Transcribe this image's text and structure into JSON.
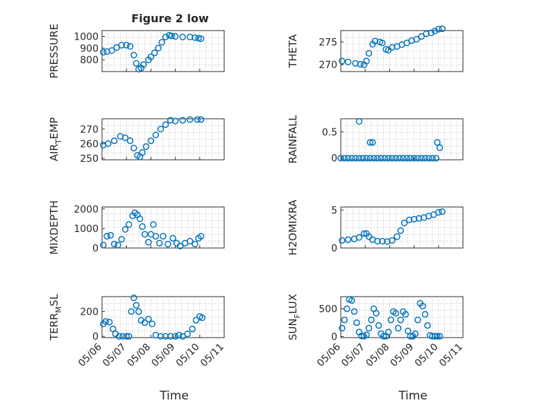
{
  "figure": {
    "title": "Figure 2 low",
    "xlabel": "Time"
  },
  "chart_data": [
    {
      "type": "scatter",
      "ylabel": "PRESSURE",
      "title": "Figure 2 low",
      "ylim": [
        700,
        1050
      ],
      "yticks": [
        800,
        900,
        1000
      ],
      "xlim": [
        0,
        5
      ],
      "series": [
        {
          "color": "#0072BD",
          "x": [
            0.05,
            0.2,
            0.4,
            0.6,
            0.8,
            1.0,
            1.15,
            1.3,
            1.4,
            1.5,
            1.6,
            1.7,
            1.9,
            2.0,
            2.15,
            2.3,
            2.45,
            2.6,
            2.75,
            2.85,
            3.0,
            3.3,
            3.6,
            3.8,
            3.95,
            4.05
          ],
          "y": [
            865,
            870,
            880,
            905,
            925,
            925,
            915,
            840,
            770,
            720,
            730,
            760,
            800,
            825,
            860,
            900,
            950,
            995,
            1010,
            1005,
            1000,
            995,
            995,
            990,
            985,
            980
          ]
        }
      ]
    },
    {
      "type": "scatter",
      "ylabel": "THETA",
      "ylim": [
        268.5,
        277.5
      ],
      "yticks": [
        270,
        275
      ],
      "xlim": [
        0,
        5
      ],
      "series": [
        {
          "color": "#0072BD",
          "x": [
            0.05,
            0.3,
            0.6,
            0.8,
            0.95,
            1.05,
            1.15,
            1.3,
            1.4,
            1.6,
            1.7,
            1.85,
            1.95,
            2.1,
            2.3,
            2.5,
            2.7,
            2.9,
            3.1,
            3.3,
            3.5,
            3.7,
            3.85,
            4.0,
            4.15
          ],
          "y": [
            270.8,
            270.6,
            270.3,
            270.1,
            270,
            270.8,
            272.5,
            274.5,
            275.2,
            275,
            274.8,
            273.4,
            273.2,
            273.8,
            274.0,
            274.4,
            274.8,
            275.3,
            275.6,
            276.2,
            276.8,
            277.0,
            277.4,
            277.8,
            277.9
          ]
        }
      ]
    },
    {
      "type": "scatter",
      "ylabel": "AIR_TEMP",
      "ylabel_main": "AIR",
      "ylabel_sub": "T",
      "ylabel_rest": "EMP",
      "ylim": [
        249,
        277
      ],
      "yticks": [
        250,
        260,
        270
      ],
      "xlim": [
        0,
        5
      ],
      "series": [
        {
          "color": "#0072BD",
          "x": [
            0.05,
            0.25,
            0.5,
            0.75,
            0.95,
            1.15,
            1.3,
            1.45,
            1.55,
            1.65,
            1.8,
            2.0,
            2.2,
            2.4,
            2.6,
            2.8,
            3.0,
            3.3,
            3.6,
            3.9,
            4.05
          ],
          "y": [
            259,
            260,
            262,
            265,
            264,
            262,
            257,
            252,
            251,
            254,
            258,
            262,
            266,
            270,
            273,
            276,
            275.5,
            276,
            276.5,
            276.5,
            276.5
          ]
        }
      ]
    },
    {
      "type": "scatter",
      "ylabel": "RAINFALL",
      "ylim": [
        -0.03,
        0.75
      ],
      "yticks": [
        0,
        0.5
      ],
      "xlim": [
        0,
        5
      ],
      "series": [
        {
          "color": "#0072BD",
          "x": [
            0.0,
            0.15,
            0.3,
            0.45,
            0.6,
            0.75,
            0.9,
            1.05,
            1.2,
            1.35,
            1.5,
            1.65,
            1.8,
            1.95,
            2.1,
            2.25,
            2.4,
            2.55,
            2.7,
            2.85,
            3.0,
            3.15,
            3.3,
            3.45,
            3.6,
            3.75,
            3.9,
            0.75,
            1.2,
            1.3,
            3.95,
            4.05
          ],
          "y": [
            0,
            0,
            0,
            0,
            0,
            0,
            0,
            0,
            0,
            0,
            0,
            0,
            0,
            0,
            0,
            0,
            0,
            0,
            0,
            0,
            0,
            0,
            0,
            0,
            0,
            0,
            0,
            0.7,
            0.3,
            0.3,
            0.3,
            0.2
          ]
        }
      ]
    },
    {
      "type": "scatter",
      "ylabel": "MIXDEPTH",
      "ylim": [
        0,
        2100
      ],
      "yticks": [
        0,
        1000,
        2000
      ],
      "xlim": [
        0,
        5
      ],
      "series": [
        {
          "color": "#0072BD",
          "x": [
            0.05,
            0.2,
            0.35,
            0.5,
            0.65,
            0.8,
            0.95,
            1.1,
            1.25,
            1.35,
            1.45,
            1.55,
            1.65,
            1.75,
            1.9,
            2.0,
            2.1,
            2.2,
            2.35,
            2.5,
            2.7,
            2.9,
            3.05,
            3.2,
            3.4,
            3.6,
            3.8,
            3.95,
            4.05
          ],
          "y": [
            150,
            600,
            650,
            200,
            150,
            450,
            950,
            1200,
            1650,
            1800,
            1700,
            1500,
            1100,
            700,
            300,
            700,
            1200,
            600,
            250,
            600,
            200,
            500,
            250,
            100,
            250,
            350,
            200,
            500,
            600
          ]
        }
      ]
    },
    {
      "type": "scatter",
      "ylabel": "H2OMIXRA",
      "ylim": [
        0,
        5.4
      ],
      "yticks": [
        0,
        5
      ],
      "xlim": [
        0,
        5
      ],
      "series": [
        {
          "color": "#0072BD",
          "x": [
            0.05,
            0.3,
            0.55,
            0.75,
            0.95,
            1.05,
            1.15,
            1.3,
            1.5,
            1.7,
            1.9,
            2.1,
            2.3,
            2.45,
            2.6,
            2.8,
            3.0,
            3.2,
            3.4,
            3.6,
            3.8,
            4.0,
            4.15
          ],
          "y": [
            1.0,
            1.1,
            1.2,
            1.4,
            1.9,
            1.9,
            1.5,
            1.1,
            0.9,
            0.9,
            0.85,
            1.0,
            1.5,
            2.3,
            3.3,
            3.7,
            3.8,
            3.9,
            4.0,
            4.2,
            4.4,
            4.7,
            4.8
          ]
        }
      ]
    },
    {
      "type": "scatter",
      "ylabel": "TERR_MSL",
      "ylabel_main": "TERR",
      "ylabel_sub": "M",
      "ylabel_rest": "SL",
      "ylim": [
        -10,
        320
      ],
      "yticks": [
        0,
        200
      ],
      "xlim": [
        0,
        5
      ],
      "xticks": [
        "05/06",
        "05/07",
        "05/08",
        "05/09",
        "05/10",
        "05/11"
      ],
      "series": [
        {
          "color": "#0072BD",
          "x": [
            0.05,
            0.15,
            0.3,
            0.45,
            0.55,
            0.7,
            0.85,
            1.0,
            1.1,
            1.2,
            1.3,
            1.4,
            1.5,
            1.6,
            1.75,
            1.9,
            2.05,
            2.2,
            2.4,
            2.6,
            2.8,
            3.0,
            3.15,
            3.3,
            3.5,
            3.7,
            3.85,
            4.0,
            4.1
          ],
          "y": [
            100,
            120,
            115,
            60,
            20,
            0,
            0,
            0,
            0,
            200,
            310,
            250,
            200,
            130,
            110,
            140,
            100,
            10,
            0,
            0,
            0,
            0,
            10,
            0,
            20,
            60,
            130,
            160,
            150
          ]
        }
      ]
    },
    {
      "type": "scatter",
      "ylabel": "SUN_FLUX",
      "ylabel_main": "SUN",
      "ylabel_sub": "F",
      "ylabel_rest": "LUX",
      "ylim": [
        -20,
        720
      ],
      "yticks": [
        0,
        500
      ],
      "xlim": [
        0,
        5
      ],
      "xticks": [
        "05/06",
        "05/07",
        "05/08",
        "05/09",
        "05/10",
        "05/11"
      ],
      "series": [
        {
          "color": "#0072BD",
          "x": [
            0.05,
            0.15,
            0.25,
            0.35,
            0.45,
            0.55,
            0.65,
            0.75,
            0.85,
            0.95,
            1.05,
            1.15,
            1.25,
            1.35,
            1.45,
            1.55,
            1.65,
            1.75,
            1.85,
            1.95,
            2.05,
            2.15,
            2.25,
            2.35,
            2.45,
            2.55,
            2.65,
            2.75,
            2.85,
            2.95,
            3.05,
            3.15,
            3.25,
            3.35,
            3.45,
            3.55,
            3.65,
            3.75,
            3.85,
            3.95,
            4.05
          ],
          "y": [
            150,
            300,
            500,
            670,
            650,
            450,
            250,
            80,
            10,
            5,
            30,
            150,
            300,
            500,
            420,
            200,
            50,
            5,
            5,
            80,
            300,
            450,
            420,
            150,
            300,
            450,
            400,
            100,
            5,
            5,
            50,
            300,
            600,
            550,
            400,
            200,
            20,
            5,
            5,
            5,
            5
          ]
        }
      ]
    }
  ]
}
